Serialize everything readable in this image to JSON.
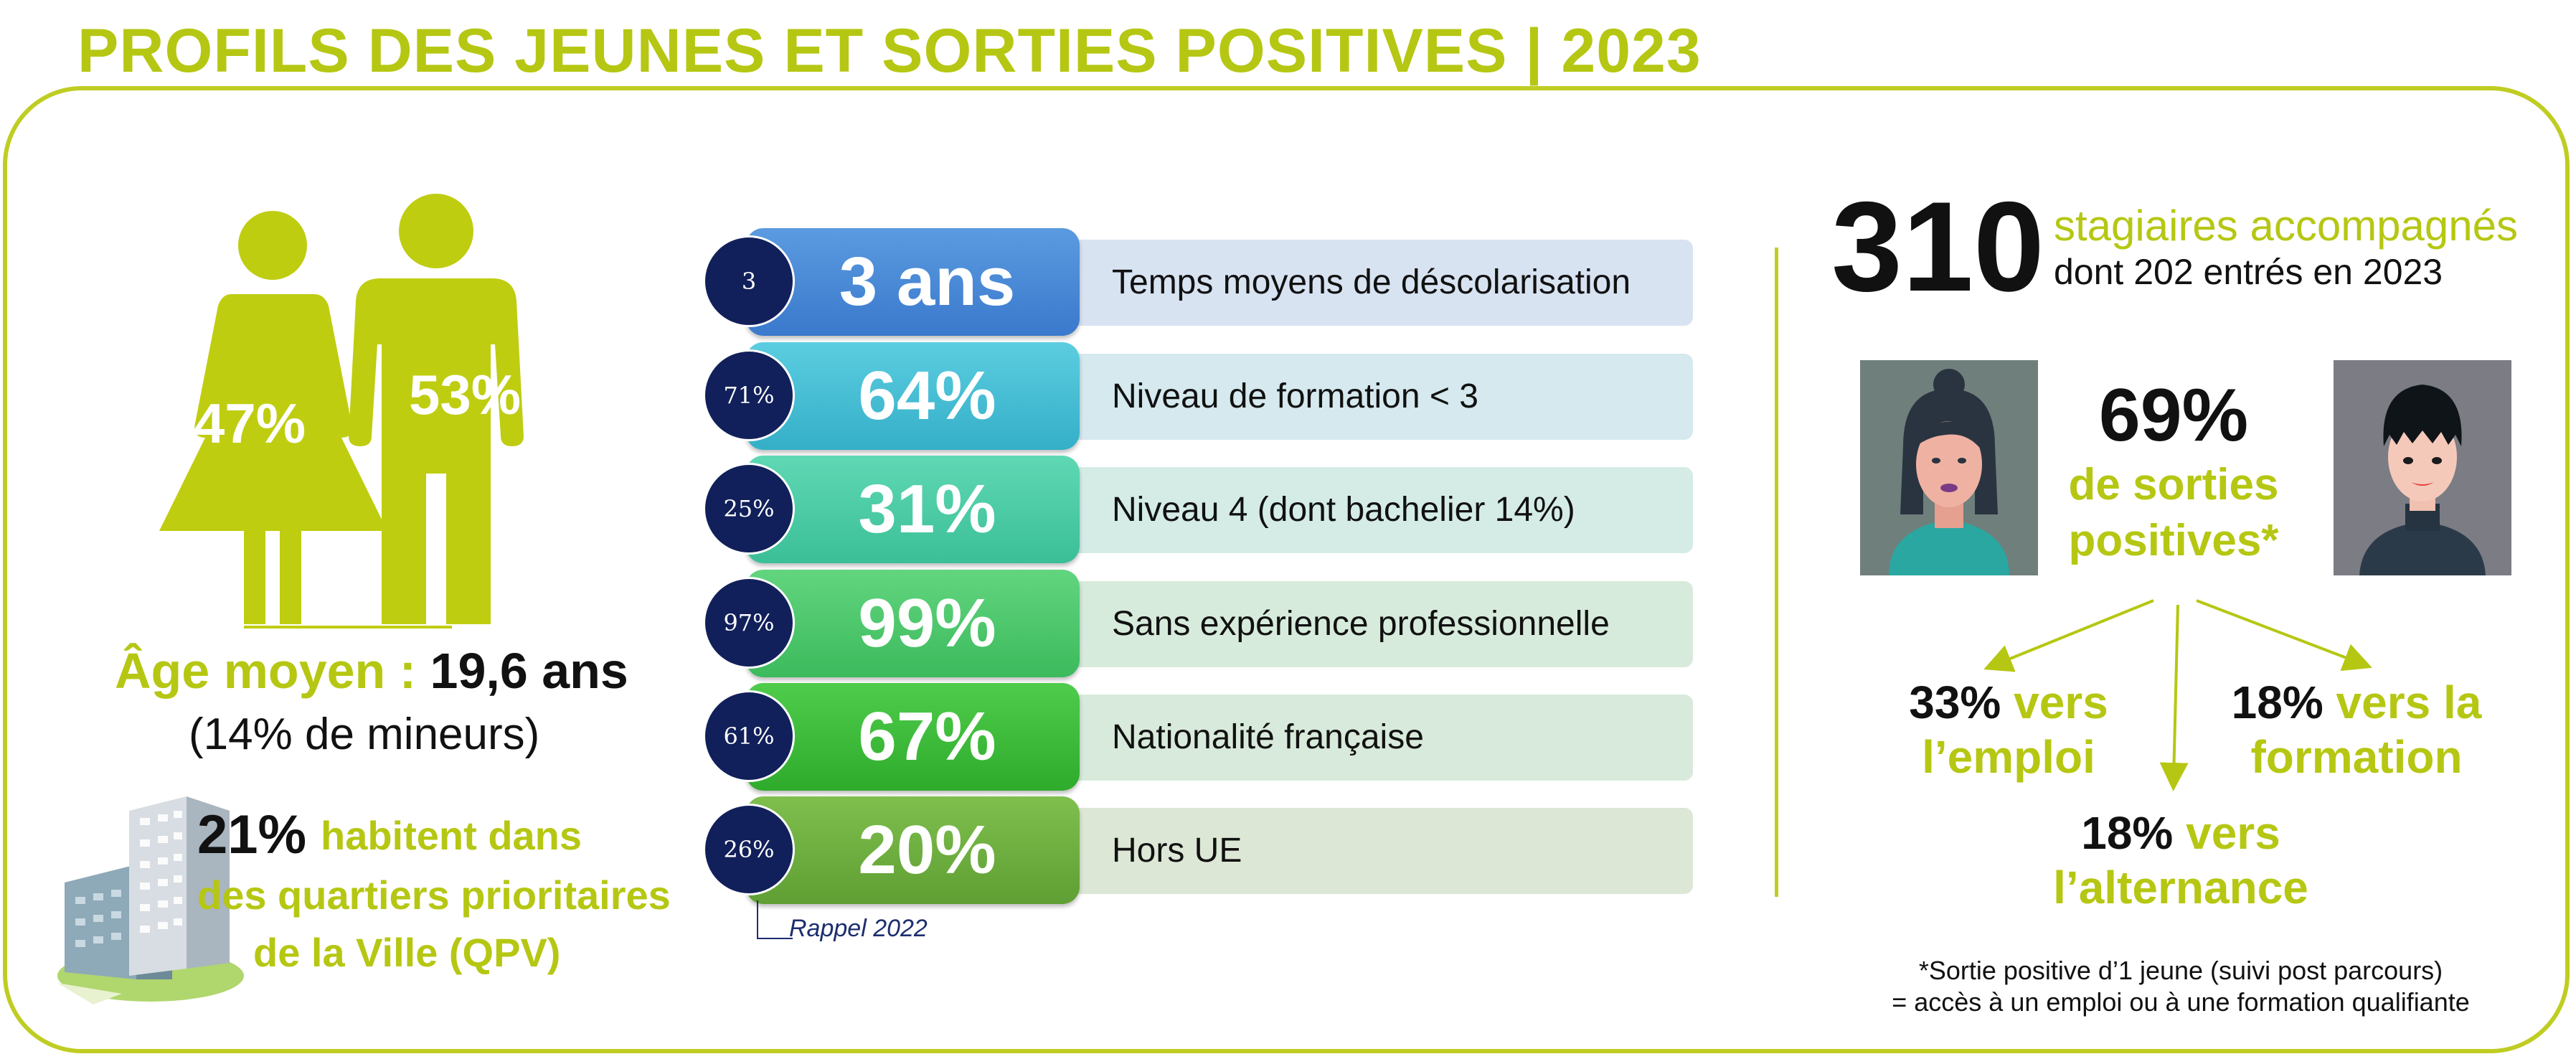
{
  "title": "PROFILS DES JEUNES ET SORTIES POSITIVES | 2023",
  "gender": {
    "women_pct": "47%",
    "men_pct": "53%",
    "women_value": 47,
    "men_value": 53
  },
  "age": {
    "label": "Âge moyen :",
    "value": "19,6 ans",
    "minors": "(14% de mineurs)"
  },
  "qpv": {
    "pct": "21%",
    "line1": "habitent dans",
    "line2": "des quartiers prioritaires",
    "line3": "de la Ville (QPV)"
  },
  "stats": [
    {
      "rappel": "3",
      "value": "3 ans",
      "label": "Temps moyens de déscolarisation",
      "pill_color_top": "#5b9be0",
      "pill_color_bottom": "#3a79cc",
      "bg_color": "#d8e3f2"
    },
    {
      "rappel": "71%",
      "value": "64%",
      "label": "Niveau de formation < 3",
      "pill_color_top": "#5ccde0",
      "pill_color_bottom": "#34afc8",
      "bg_color": "#d5e9ee"
    },
    {
      "rappel": "25%",
      "value": "31%",
      "label": "Niveau 4 (dont bachelier 14%)",
      "pill_color_top": "#5fd8b4",
      "pill_color_bottom": "#3bbf97",
      "bg_color": "#d5ece6"
    },
    {
      "rappel": "97%",
      "value": "99%",
      "label": "Sans expérience professionnelle",
      "pill_color_top": "#62d57f",
      "pill_color_bottom": "#3cba5c",
      "bg_color": "#d7ebdc"
    },
    {
      "rappel": "61%",
      "value": "67%",
      "label": "Nationalité française",
      "pill_color_top": "#4fcc4c",
      "pill_color_bottom": "#2fab2c",
      "bg_color": "#d8eadb"
    },
    {
      "rappel": "26%",
      "value": "20%",
      "label": "Hors UE",
      "pill_color_top": "#7fbf4e",
      "pill_color_bottom": "#5f9f33",
      "bg_color": "#dce7d6"
    }
  ],
  "rappel_label": "Rappel 2022",
  "trainees": {
    "count": "310",
    "line1": "stagiaires accompagnés",
    "line2": "dont 202 entrés en 2023"
  },
  "outcomes": {
    "positive_pct": "69%",
    "positive_line1": "de sorties",
    "positive_line2": "positives*",
    "emploi_pct": "33%",
    "emploi_word": "vers",
    "emploi_line2": "l’emploi",
    "formation_pct": "18%",
    "formation_word": "vers la",
    "formation_line2": "formation",
    "alternance_pct": "18%",
    "alternance_word": "vers",
    "alternance_line2": "l’alternance"
  },
  "footnote": {
    "line1": "*Sortie positive d’1 jeune (suivi post parcours)",
    "line2": "= accès à un emploi ou à une formation qualifiante"
  },
  "colors": {
    "accent": "#b5c712",
    "circle": "#11205a",
    "text": "#111111"
  },
  "icons": {
    "people": "woman-man-silhouette-icon",
    "building": "building-icon",
    "avatar_woman": "woman-avatar-icon",
    "avatar_man": "man-avatar-icon"
  }
}
